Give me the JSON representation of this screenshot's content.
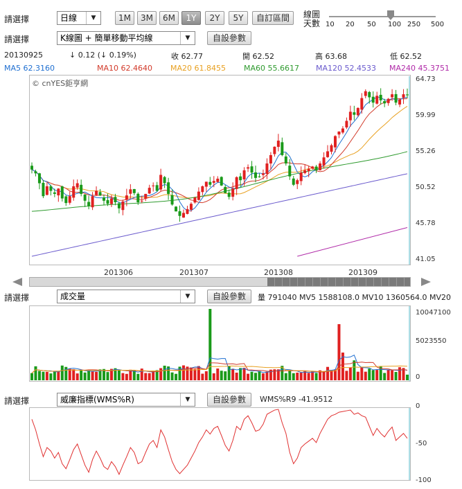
{
  "controls": {
    "period_label": "請選擇",
    "period_value": "日線",
    "range_buttons": [
      "1M",
      "3M",
      "6M",
      "1Y",
      "2Y",
      "5Y",
      "自訂區間"
    ],
    "active_range": "1Y",
    "days_label_line1": "線圖",
    "days_label_line2": "天數",
    "days_ticks": [
      "10",
      "20",
      "50",
      "100",
      "250",
      "500"
    ],
    "days_value": 100,
    "chart_type_label": "請選擇",
    "chart_type_value": "K線圖 + 簡單移動平均線",
    "params_button": "自設參數"
  },
  "quote": {
    "date": "20130925",
    "change": "↓ 0.12 (↓ 0.19%)",
    "close": "收 62.77",
    "open": "開 62.52",
    "high": "高 63.68",
    "low": "低 62.52"
  },
  "ma_legend": [
    {
      "text": "MA5 62.3160",
      "color": "#1f6fd1"
    },
    {
      "text": "MA10 62.4640",
      "color": "#d23a2a"
    },
    {
      "text": "MA20 61.8455",
      "color": "#e8a020"
    },
    {
      "text": "MA60 55.6617",
      "color": "#2e9a2e"
    },
    {
      "text": "MA120 52.4533",
      "color": "#6a5acd"
    },
    {
      "text": "MA240 45.3751",
      "color": "#b02aa8"
    }
  ],
  "watermark": "© cnYES鉅亨網",
  "volume_panel": {
    "label": "請選擇",
    "select_value": "成交量",
    "params_button": "自設參數",
    "info": "量 791040  MV5 1588108.0  MV10 1360564.0  MV20"
  },
  "wms_panel": {
    "label": "請選擇",
    "select_value": "威廉指標(WMS%R)",
    "params_button": "自設參數",
    "info": "WMS%R9 -41.9512"
  },
  "chart_data": [
    {
      "type": "candlestick",
      "y_ticks": [
        "64.73",
        "59.99",
        "55.26",
        "50.52",
        "45.78",
        "41.05"
      ],
      "ylim": [
        41.05,
        64.73
      ],
      "x_ticks": [
        "201306",
        "201307",
        "201308",
        "201309"
      ],
      "close": [
        53.0,
        52.5,
        51.2,
        49.5,
        50.8,
        50.2,
        49.8,
        50.5,
        49.2,
        48.6,
        49.5,
        50.8,
        51.2,
        49.8,
        48.9,
        48.2,
        49.5,
        50.2,
        49.6,
        48.9,
        48.5,
        49.2,
        48.7,
        47.9,
        48.8,
        49.6,
        50.4,
        49.9,
        48.7,
        48.9,
        49.8,
        50.6,
        50.9,
        50.2,
        52.3,
        51.2,
        49.8,
        48.4,
        47.5,
        46.9,
        47.3,
        47.8,
        48.5,
        49.3,
        50.1,
        50.8,
        51.4,
        51.0,
        51.5,
        51.8,
        50.9,
        49.9,
        49.4,
        50.5,
        52.0,
        51.6,
        52.9,
        53.3,
        52.6,
        51.9,
        52.0,
        52.5,
        53.8,
        54.9,
        56.0,
        56.8,
        54.9,
        53.8,
        52.1,
        51.0,
        51.6,
        52.6,
        52.9,
        53.1,
        53.4,
        52.9,
        53.8,
        54.6,
        55.4,
        56.2,
        57.4,
        58.0,
        58.4,
        59.4,
        60.6,
        60.2,
        61.1,
        62.4,
        63.3,
        62.5,
        61.8,
        62.7,
        62.1,
        61.7,
        62.3,
        62.9,
        61.8,
        62.2,
        62.9,
        62.77
      ],
      "wms": [
        -15,
        -30,
        -50,
        -68,
        -55,
        -60,
        -70,
        -62,
        -78,
        -85,
        -72,
        -58,
        -50,
        -65,
        -80,
        -90,
        -72,
        -60,
        -70,
        -82,
        -86,
        -75,
        -82,
        -93,
        -80,
        -68,
        -55,
        -62,
        -78,
        -75,
        -62,
        -50,
        -45,
        -55,
        -30,
        -40,
        -58,
        -75,
        -86,
        -92,
        -86,
        -80,
        -70,
        -60,
        -48,
        -40,
        -30,
        -36,
        -28,
        -25,
        -38,
        -52,
        -60,
        -45,
        -25,
        -30,
        -15,
        -10,
        -20,
        -32,
        -30,
        -22,
        -8,
        -5,
        -2,
        -1,
        -20,
        -35,
        -62,
        -78,
        -70,
        -55,
        -50,
        -46,
        -42,
        -48,
        -35,
        -25,
        -15,
        -10,
        -8,
        -5,
        -4,
        -3,
        -2,
        -8,
        -6,
        -10,
        -12,
        -25,
        -38,
        -28,
        -35,
        -40,
        -32,
        -26,
        -45,
        -40,
        -35,
        -41.9512
      ]
    },
    {
      "type": "bar",
      "title": "成交量",
      "y_ticks": [
        "10047100",
        "5023550",
        "0"
      ],
      "ylim": [
        0,
        10047100
      ]
    },
    {
      "type": "line",
      "title": "WMS%R",
      "y_ticks": [
        "0",
        "-50",
        "-100"
      ],
      "ylim": [
        -100,
        0
      ]
    }
  ]
}
